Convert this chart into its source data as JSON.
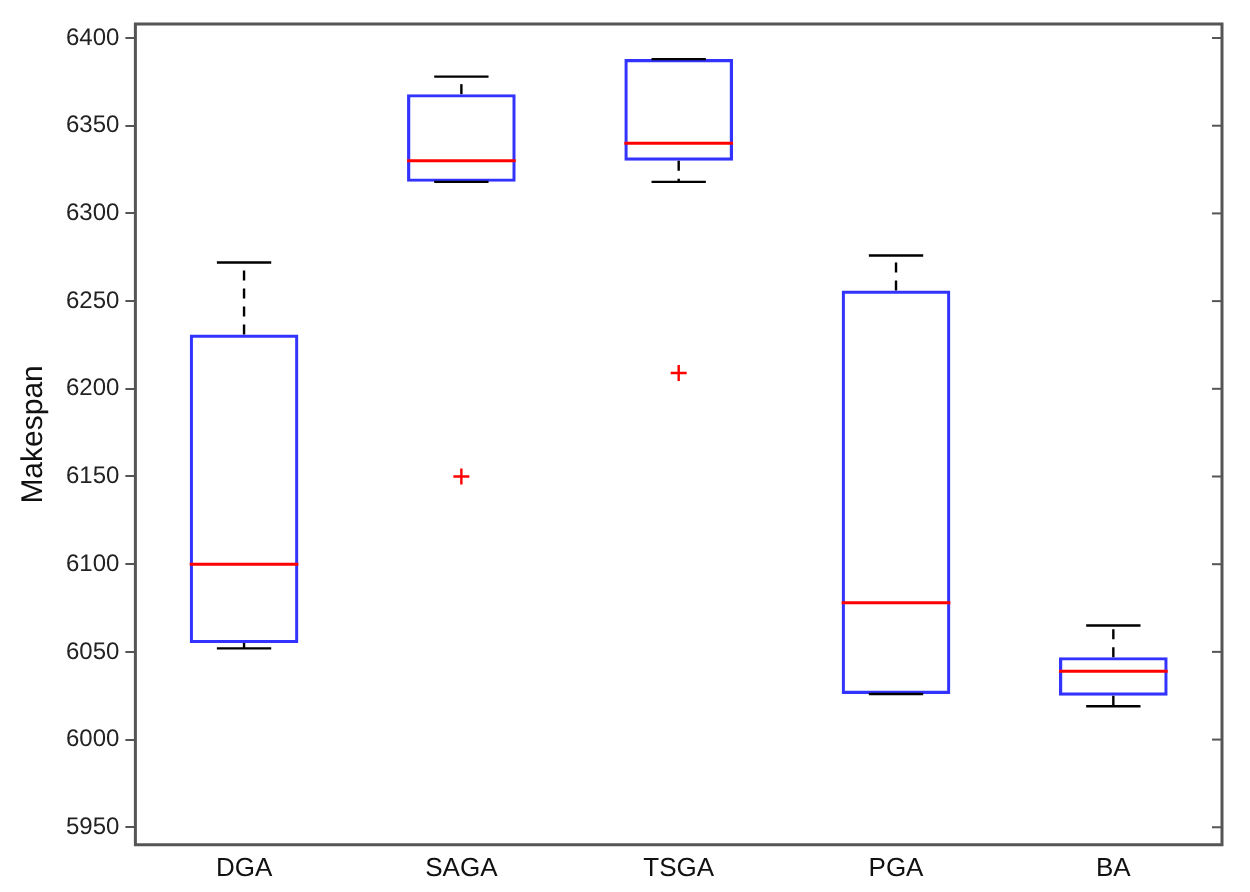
{
  "chart_data": {
    "type": "box",
    "ylabel": "Makespan",
    "categories": [
      "DGA",
      "SAGA",
      "TSGA",
      "PGA",
      "BA"
    ],
    "ylim": [
      5940,
      6408
    ],
    "yticks": [
      5950,
      6000,
      6050,
      6100,
      6150,
      6200,
      6250,
      6300,
      6350,
      6400
    ],
    "grid": false,
    "series": [
      {
        "color": "#3333ff",
        "boxes": [
          {
            "low": 6052,
            "q1": 6055,
            "median": 6100,
            "q3": 6231,
            "high": 6272
          },
          {
            "low": 6318,
            "q1": 6318,
            "median": 6330,
            "q3": 6368,
            "high": 6378,
            "outliers": [
              6150
            ]
          },
          {
            "low": 6318,
            "q1": 6330,
            "median": 6340,
            "q3": 6388,
            "high": 6388,
            "outliers": [
              6209
            ]
          },
          {
            "low": 6026,
            "q1": 6026,
            "median": 6078,
            "q3": 6256,
            "high": 6276
          },
          {
            "low": 6019,
            "q1": 6025,
            "median": 6039,
            "q3": 6047,
            "high": 6065
          }
        ]
      }
    ]
  }
}
